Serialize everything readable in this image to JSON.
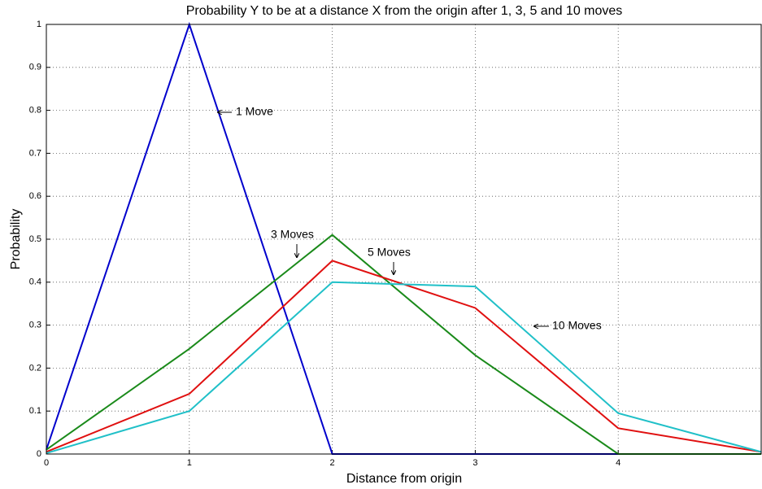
{
  "chart_data": {
    "type": "line",
    "title": "Probability Y to be at a distance X from the origin after 1, 3, 5 and 10 moves",
    "x_label": "Distance from origin",
    "y_label": "Probability",
    "x": [
      0,
      1,
      2,
      3,
      4,
      5
    ],
    "series": [
      {
        "name": "1 Move",
        "color": "#0000cc",
        "values": [
          0.01,
          1,
          0,
          0,
          0,
          0
        ]
      },
      {
        "name": "3 Moves",
        "color": "#1a8a1a",
        "values": [
          0.01,
          0.245,
          0.51,
          0.23,
          0,
          0
        ]
      },
      {
        "name": "5 Moves",
        "color": "#e01010",
        "values": [
          0.005,
          0.14,
          0.45,
          0.34,
          0.06,
          0.005
        ]
      },
      {
        "name": "10 Moves",
        "color": "#20c0c8",
        "values": [
          0.002,
          0.1,
          0.4,
          0.39,
          0.095,
          0.005
        ]
      }
    ],
    "xlim": [
      0,
      5
    ],
    "xticks": [
      0,
      1,
      2,
      3,
      4
    ],
    "ylim": [
      0,
      1
    ],
    "yticks": [
      0,
      0.1,
      0.2,
      0.3,
      0.4,
      0.5,
      0.6,
      0.7,
      0.8,
      0.9,
      1
    ],
    "grid": true
  }
}
